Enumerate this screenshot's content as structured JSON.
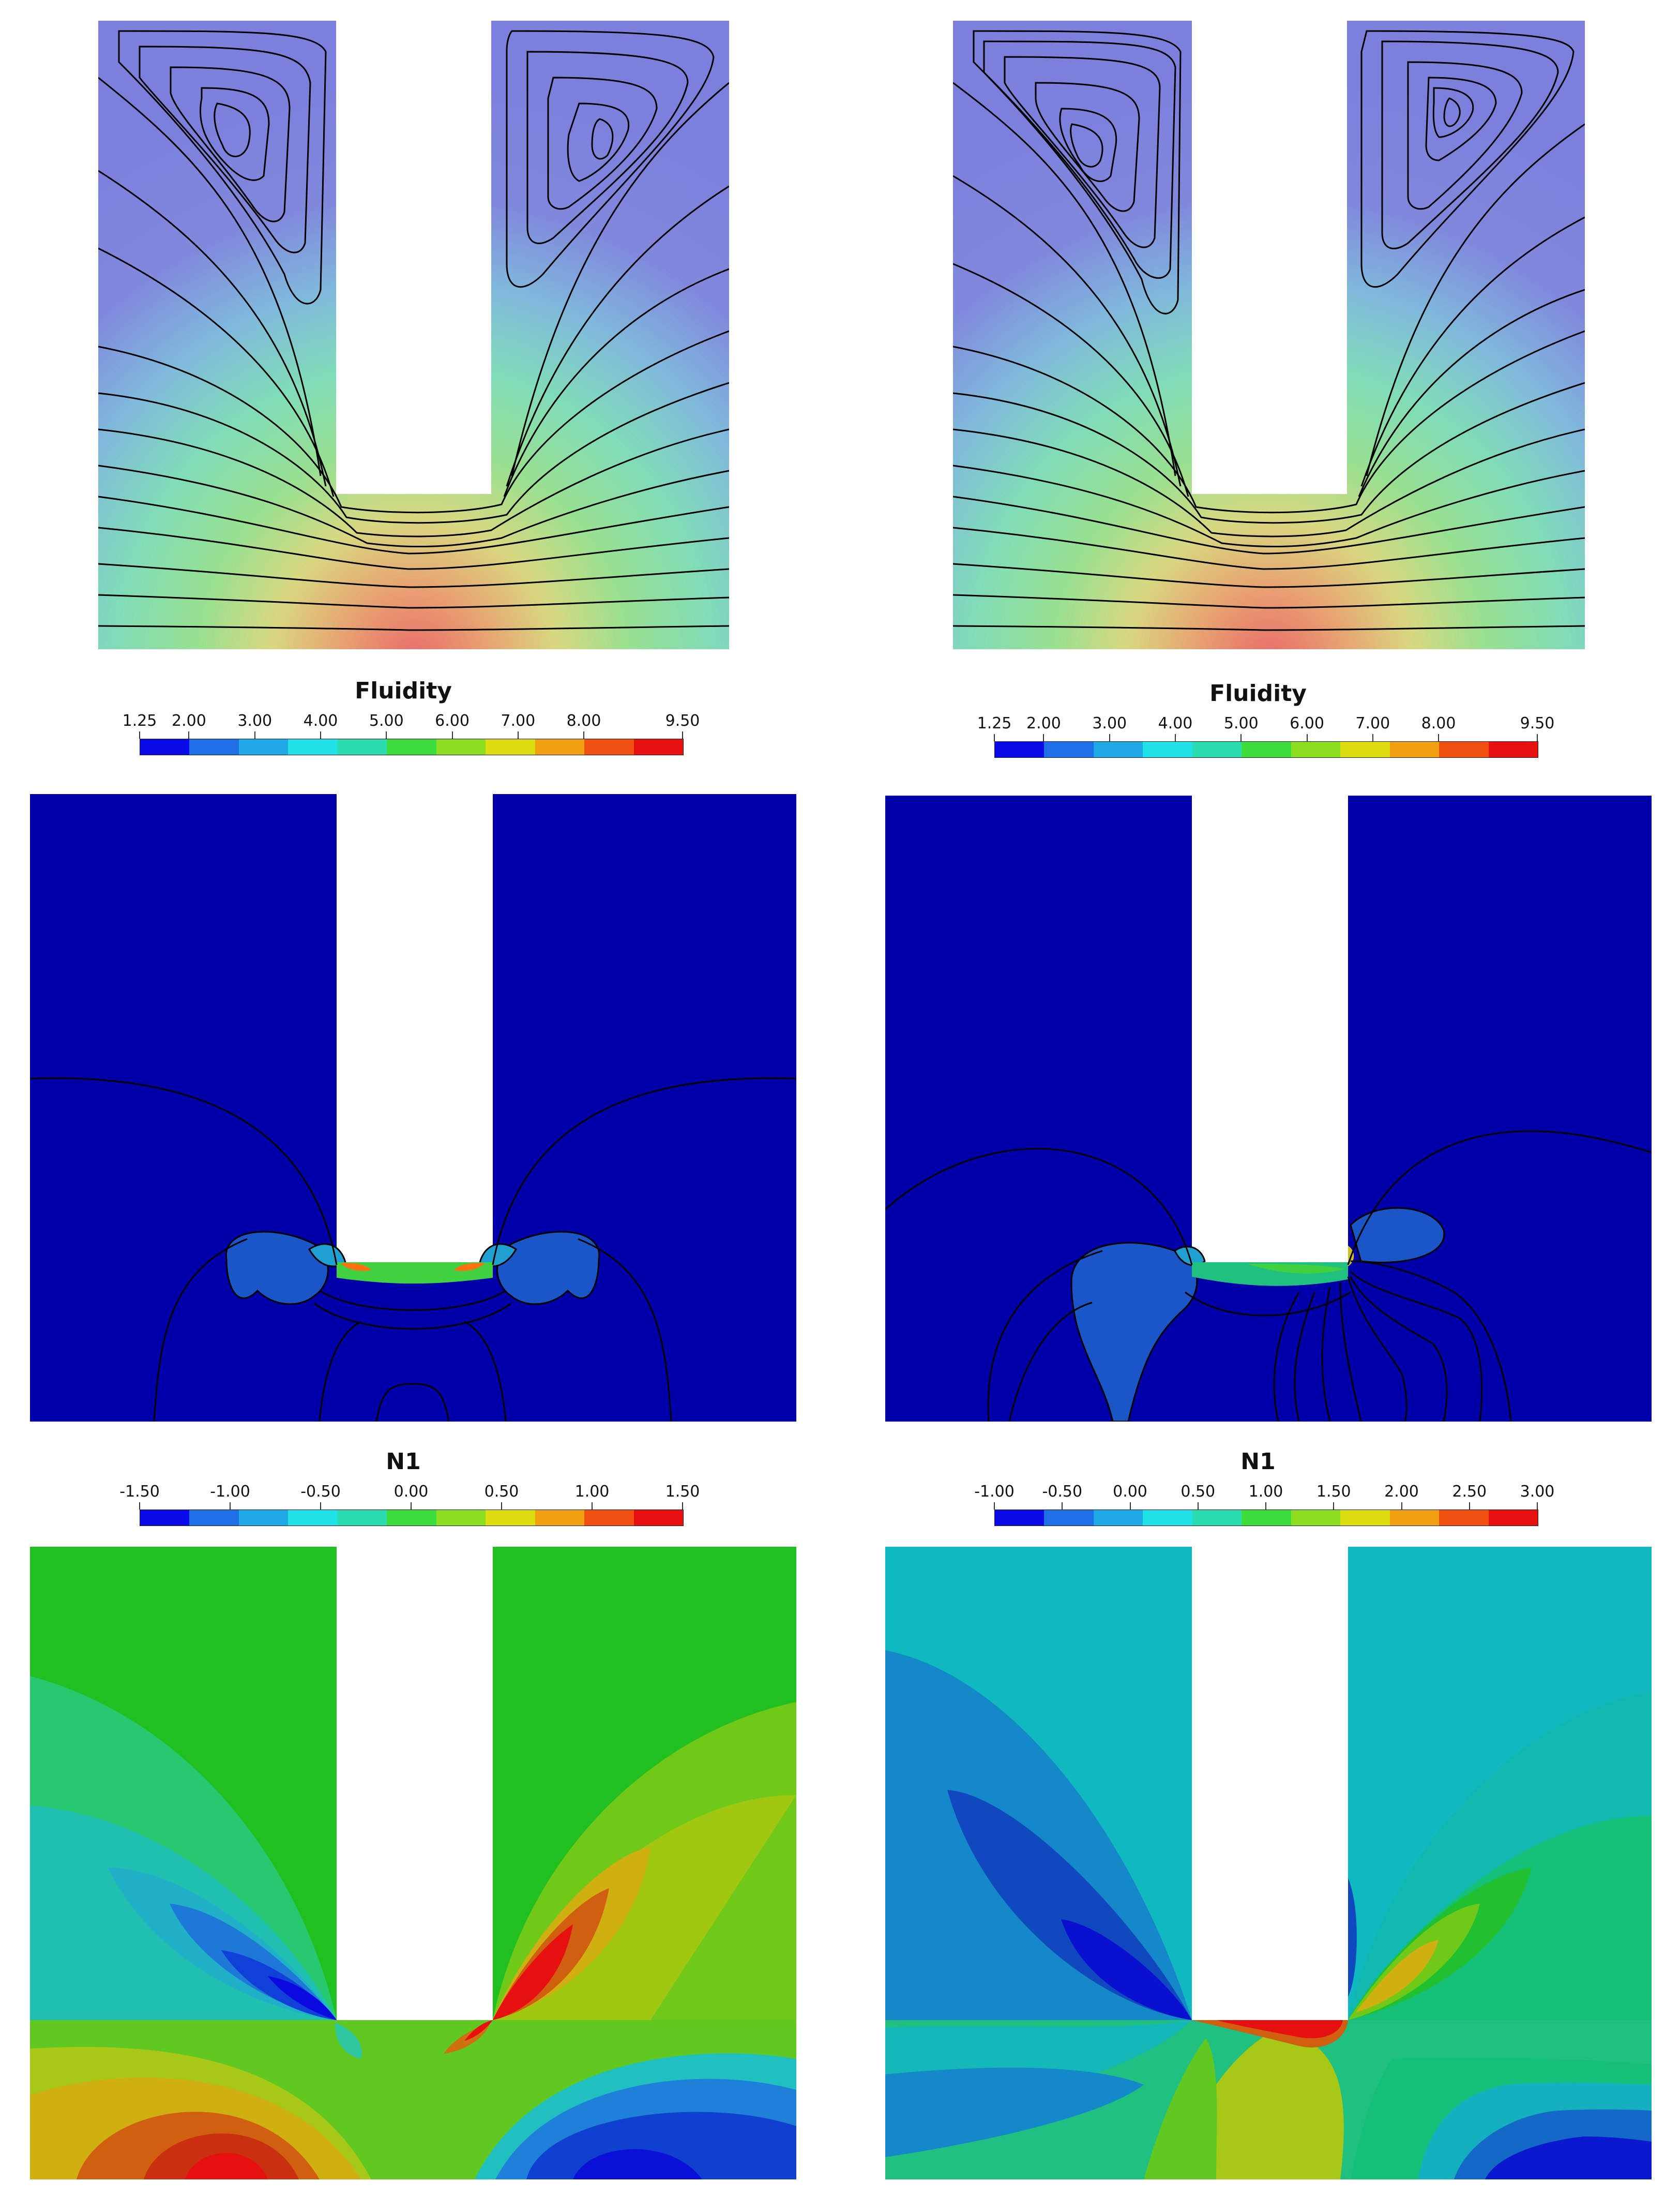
{
  "colorbars": [
    {
      "id": "fluidity-left",
      "title": "Fluidity",
      "ticks": [
        "1.25",
        "2.00",
        "3.00",
        "4.00",
        "5.00",
        "6.00",
        "7.00",
        "8.00",
        "9.50"
      ],
      "tick_values": [
        1.25,
        2,
        3,
        4,
        5,
        6,
        7,
        8,
        9.5
      ],
      "range": [
        1.25,
        9.5
      ]
    },
    {
      "id": "fluidity-right",
      "title": "Fluidity",
      "ticks": [
        "1.25",
        "2.00",
        "3.00",
        "4.00",
        "5.00",
        "6.00",
        "7.00",
        "8.00",
        "9.50"
      ],
      "tick_values": [
        1.25,
        2,
        3,
        4,
        5,
        6,
        7,
        8,
        9.5
      ],
      "range": [
        1.25,
        9.5
      ]
    },
    {
      "id": "n1-left",
      "title": "N1",
      "ticks": [
        "-1.50",
        "-1.00",
        "-0.50",
        "0.00",
        "0.50",
        "1.00",
        "1.50"
      ],
      "tick_values": [
        -1.5,
        -1,
        -0.5,
        0,
        0.5,
        1,
        1.5
      ],
      "range": [
        -1.5,
        1.5
      ]
    },
    {
      "id": "n1-right",
      "title": "N1",
      "ticks": [
        "-1.00",
        "-0.50",
        "0.00",
        "0.50",
        "1.00",
        "1.50",
        "2.00",
        "2.50",
        "3.00"
      ],
      "tick_values": [
        -1,
        -0.5,
        0,
        0.5,
        1,
        1.5,
        2,
        2.5,
        3
      ],
      "range": [
        -1,
        3
      ]
    }
  ],
  "palette": [
    "#0a0ae8",
    "#1e6ee6",
    "#1ea8e6",
    "#20e0e8",
    "#2adcb0",
    "#3cdc3c",
    "#8cdc20",
    "#dcdc10",
    "#f0a010",
    "#f05010",
    "#e61010"
  ],
  "colors": {
    "domain_blue": "#0000aa",
    "vortex_lilac": "#7c7fdc",
    "streamline": "#000000"
  }
}
